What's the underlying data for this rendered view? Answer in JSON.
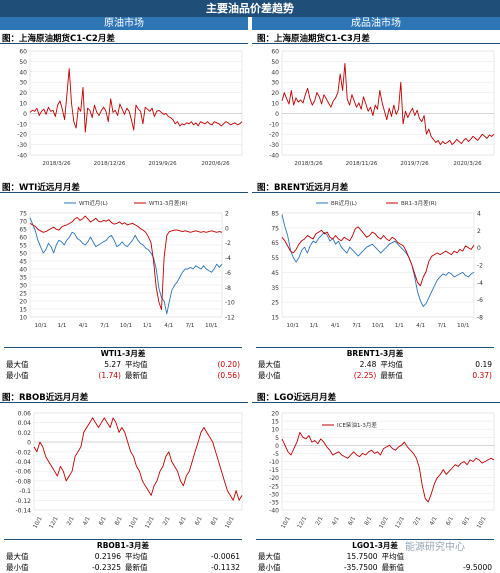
{
  "header": {
    "title": "主要油品价差趋势",
    "left": "原油市场",
    "right": "成品油市场"
  },
  "panels": {
    "p1": {
      "title": "图：上海原油期货C1-C2月差"
    },
    "p2": {
      "title": "图：上海原油期货C1-C3月差"
    },
    "p3": {
      "title": "图：WTI近远月月差"
    },
    "p4": {
      "title": "图：BRENT近远月月差"
    },
    "p5": {
      "title": "图：RBOB近远月月差"
    },
    "p6": {
      "title": "图：LGO近远月月差"
    }
  },
  "stats": {
    "wti": {
      "title": "WTI1-3月差",
      "max_label": "最大值",
      "max": "5.27",
      "avg_label": "平均值",
      "avg": "(0.20)",
      "min_label": "最小值",
      "min": "(1.74)",
      "latest_label": "最新值",
      "latest": "(0.56)"
    },
    "brent": {
      "title": "BRENT1-3月差",
      "max_label": "最大值",
      "max": "2.48",
      "avg_label": "平均值",
      "avg": "0.19",
      "min_label": "最小值",
      "min": "(2.25)",
      "latest_label": "最新值",
      "latest": "0.37)"
    },
    "rbob": {
      "title": "RBOB1-3月差",
      "max_label": "最大值",
      "max": "0.2196",
      "avg_label": "平均值",
      "avg": "-0.0061",
      "min_label": "最小值",
      "min": "-0.2325",
      "latest_label": "最新值",
      "latest": "-0.1132"
    },
    "lgo": {
      "title": "LGO1-3月差",
      "max_label": "最大值",
      "max": "15.7500",
      "avg_label": "平均值",
      "avg": "",
      "min_label": "最小值",
      "min": "-35.7500",
      "latest_label": "最新值",
      "latest": "-9.5000"
    }
  },
  "watermark": "能源研究中心",
  "colors": {
    "blue": "#2e75b6",
    "red": "#c00000",
    "navy": "#1f4e79"
  },
  "chart_data": [
    {
      "id": "c1",
      "type": "line",
      "x_ticks": [
        "2018/3/26",
        "2018/12/26",
        "2019/9/26",
        "2020/6/26"
      ],
      "ylim": [
        -40,
        60
      ],
      "y_ticks": [
        -40,
        -30,
        -20,
        -10,
        0,
        10,
        20,
        30,
        40,
        50,
        60
      ],
      "series": [
        {
          "color": "#c00000",
          "values": [
            1,
            3,
            2,
            5,
            -2,
            2,
            4,
            -1,
            6,
            2,
            3,
            -3,
            8,
            12,
            4,
            -6,
            18,
            43,
            10,
            -8,
            -14,
            6,
            2,
            25,
            -18,
            5,
            3,
            -4,
            8,
            1,
            -2,
            3,
            6,
            2,
            -8,
            14,
            1,
            3,
            -2,
            9,
            4,
            -1,
            5,
            2,
            -6,
            -16,
            8,
            4,
            2,
            -10,
            6,
            4,
            2,
            5,
            -3,
            2,
            3,
            1,
            -1,
            0,
            -3,
            -4,
            -6,
            -10,
            -8,
            -12,
            -10,
            -11,
            -9,
            -10,
            -8,
            -11,
            -9,
            -12,
            -8,
            -9,
            -10,
            -8,
            -10,
            -11,
            -8,
            -9,
            -10,
            -12,
            -10,
            -8,
            -9,
            -11,
            -10,
            -9,
            -11,
            -10,
            -8
          ]
        }
      ]
    },
    {
      "id": "c2",
      "type": "line",
      "x_ticks": [
        "2018/3/26",
        "2018/11/26",
        "2019/7/26",
        "2020/3/26"
      ],
      "ylim": [
        -40,
        60
      ],
      "y_ticks": [
        -40,
        -30,
        -20,
        -10,
        0,
        10,
        20,
        30,
        40,
        50,
        60
      ],
      "series": [
        {
          "color": "#c00000",
          "values": [
            12,
            20,
            14,
            9,
            22,
            8,
            15,
            11,
            13,
            10,
            18,
            24,
            14,
            8,
            12,
            20,
            16,
            9,
            18,
            14,
            10,
            6,
            12,
            15,
            20,
            38,
            22,
            48,
            14,
            8,
            18,
            12,
            6,
            10,
            4,
            16,
            9,
            2,
            6,
            -2,
            8,
            4,
            22,
            10,
            2,
            -6,
            5,
            -3,
            8,
            -1,
            4,
            30,
            -10,
            2,
            -4,
            1,
            5,
            -2,
            3,
            -5,
            -8,
            -2,
            -20,
            -15,
            -22,
            -25,
            -28,
            -26,
            -30,
            -27,
            -29,
            -28,
            -26,
            -30,
            -28,
            -25,
            -27,
            -29,
            -26,
            -24,
            -27,
            -25,
            -22,
            -24,
            -26,
            -23,
            -20,
            -22,
            -24,
            -21,
            -22,
            -20
          ]
        }
      ]
    },
    {
      "id": "c3",
      "type": "line",
      "x_ticks": [
        "10/1",
        "1/1",
        "4/1",
        "7/1",
        "10/1",
        "1/1",
        "4/1",
        "7/1",
        "10/1"
      ],
      "ylim": [
        10,
        75
      ],
      "y_ticks": [
        10,
        15,
        20,
        25,
        30,
        35,
        40,
        45,
        50,
        55,
        60,
        65,
        70,
        75
      ],
      "y2lim": [
        -12,
        2
      ],
      "y2_ticks": [
        -12,
        -10,
        -8,
        -6,
        -4,
        -2,
        0,
        2
      ],
      "series": [
        {
          "name": "WTI近月(L)",
          "axis": "left",
          "color": "#2e75b6",
          "values": [
            72,
            68,
            64,
            58,
            54,
            50,
            52,
            56,
            54,
            50,
            55,
            58,
            57,
            55,
            58,
            60,
            63,
            62,
            59,
            58,
            56,
            55,
            57,
            60,
            57,
            54,
            55,
            56,
            57,
            58,
            60,
            61,
            58,
            54,
            55,
            57,
            55,
            54,
            56,
            58,
            61,
            58,
            56,
            55,
            53,
            52,
            50,
            47,
            40,
            28,
            22,
            20,
            12,
            20,
            27,
            30,
            32,
            35,
            38,
            40,
            40,
            41,
            40,
            42,
            41,
            40,
            42,
            40,
            39,
            38,
            40,
            43,
            41,
            43
          ]
        },
        {
          "name": "WTI1-3月差(R)",
          "axis": "right",
          "color": "#c00000",
          "values": [
            0.6,
            0.4,
            0.2,
            -0.2,
            -0.4,
            -0.6,
            -0.5,
            -0.3,
            -0.1,
            0.1,
            -0.2,
            -0.3,
            0.1,
            0.3,
            0.4,
            0.6,
            0.8,
            1.2,
            1.4,
            1.0,
            1.2,
            1.6,
            1.2,
            0.8,
            1.0,
            1.3,
            0.9,
            0.8,
            1.0,
            0.9,
            1.1,
            0.7,
            0.5,
            0.6,
            0.8,
            0.5,
            0.7,
            0.4,
            0.5,
            0.6,
            0.4,
            0.2,
            -0.1,
            -0.3,
            -0.6,
            -1.2,
            -2.0,
            -4.5,
            -8.0,
            -10.0,
            -11.0,
            -4.0,
            -1.0,
            -0.5,
            -0.4,
            -0.3,
            -0.3,
            -0.4,
            -0.5,
            -0.4,
            -0.5,
            -0.6,
            -0.5,
            -0.4,
            -0.5,
            -0.6,
            -0.5,
            -0.6,
            -0.5,
            -0.4,
            -0.5,
            -0.6,
            -0.5,
            -0.6
          ]
        }
      ]
    },
    {
      "id": "c4",
      "type": "line",
      "x_ticks": [
        "10/1",
        "1/1",
        "4/1",
        "7/1",
        "10/1",
        "1/1",
        "4/1",
        "7/1",
        "10/1"
      ],
      "ylim": [
        15,
        85
      ],
      "y_ticks": [
        15,
        25,
        35,
        45,
        55,
        65,
        75,
        85
      ],
      "y2lim": [
        -8,
        4
      ],
      "y2_ticks": [
        -8,
        -6,
        -4,
        -2,
        0,
        2,
        4
      ],
      "series": [
        {
          "name": "BR近月(L)",
          "axis": "left",
          "color": "#2e75b6",
          "values": [
            84,
            76,
            70,
            60,
            55,
            52,
            55,
            60,
            62,
            58,
            63,
            66,
            65,
            68,
            70,
            72,
            70,
            66,
            68,
            64,
            66,
            62,
            60,
            58,
            62,
            60,
            58,
            56,
            58,
            60,
            62,
            63,
            64,
            62,
            60,
            58,
            60,
            62,
            64,
            65,
            66,
            64,
            62,
            60,
            58,
            55,
            50,
            42,
            32,
            26,
            22,
            24,
            28,
            32,
            36,
            40,
            42,
            44,
            43,
            45,
            44,
            42,
            43,
            44,
            45,
            43,
            42,
            44,
            45
          ]
        },
        {
          "name": "BR1-3月差(R)",
          "axis": "right",
          "color": "#c00000",
          "values": [
            1.2,
            0.8,
            0.2,
            -0.4,
            -0.6,
            -0.2,
            0.4,
            0.8,
            1.0,
            1.4,
            1.2,
            1.0,
            1.6,
            1.8,
            2.0,
            1.6,
            1.8,
            1.2,
            1.0,
            1.4,
            1.0,
            0.8,
            1.2,
            1.0,
            0.8,
            1.4,
            2.2,
            2.4,
            2.0,
            1.6,
            1.2,
            1.4,
            1.8,
            1.6,
            1.2,
            1.0,
            1.4,
            1.0,
            0.8,
            1.2,
            1.0,
            0.6,
            0.4,
            0.2,
            -0.4,
            -1.2,
            -2.0,
            -3.0,
            -4.0,
            -4.4,
            -3.4,
            -2.8,
            -1.6,
            -1.0,
            -0.8,
            -0.6,
            -0.8,
            -0.6,
            -0.4,
            -0.6,
            -0.8,
            -0.4,
            -0.6,
            -0.2,
            -0.4,
            0.2,
            0.0,
            -0.2,
            0.3
          ]
        }
      ]
    },
    {
      "id": "c5",
      "type": "line",
      "x_ticks": [
        "10/1",
        "12/1",
        "2/1",
        "4/1",
        "6/1",
        "8/1",
        "10/1",
        "12/1",
        "2/1",
        "4/1",
        "6/1",
        "8/1",
        "10/1"
      ],
      "ylim": [
        -0.14,
        0.06
      ],
      "y_ticks": [
        -0.14,
        -0.12,
        -0.1,
        -0.08,
        -0.06,
        -0.04,
        -0.02,
        0,
        0.02,
        0.04,
        0.06
      ],
      "series": [
        {
          "color": "#c00000",
          "values": [
            -0.01,
            -0.02,
            0.0,
            -0.01,
            -0.03,
            -0.04,
            -0.05,
            -0.06,
            -0.07,
            -0.05,
            -0.06,
            -0.08,
            -0.07,
            -0.06,
            -0.03,
            -0.02,
            -0.01,
            0.02,
            0.03,
            0.04,
            0.05,
            0.04,
            0.03,
            0.04,
            0.05,
            0.04,
            0.03,
            0.05,
            0.04,
            0.02,
            0.03,
            0.02,
            0.0,
            -0.02,
            -0.03,
            -0.05,
            -0.06,
            -0.08,
            -0.09,
            -0.1,
            -0.11,
            -0.09,
            -0.08,
            -0.06,
            -0.05,
            -0.03,
            -0.02,
            -0.04,
            -0.05,
            -0.06,
            -0.08,
            -0.09,
            -0.07,
            -0.06,
            -0.04,
            -0.02,
            0.0,
            0.02,
            0.03,
            0.02,
            0.01,
            0.0,
            -0.02,
            -0.04,
            -0.06,
            -0.08,
            -0.1,
            -0.11,
            -0.12,
            -0.1,
            -0.12,
            -0.11
          ]
        }
      ]
    },
    {
      "id": "c6",
      "type": "line",
      "x_ticks": [
        "10/1",
        "12/1",
        "2/1",
        "4/1",
        "6/1",
        "8/1",
        "10/1",
        "12/1",
        "2/1",
        "4/1",
        "6/1",
        "8/1",
        "10/1"
      ],
      "ylim": [
        -40,
        20
      ],
      "y_ticks": [
        -40,
        -35,
        -30,
        -25,
        -20,
        -15,
        -10,
        -5,
        0,
        5,
        10,
        15,
        20
      ],
      "series": [
        {
          "name": "ICE柴油1-3月差",
          "color": "#c00000",
          "values": [
            4,
            0,
            -4,
            -6,
            -2,
            2,
            8,
            5,
            4,
            6,
            2,
            3,
            1,
            4,
            2,
            -1,
            -3,
            -6,
            -5,
            -4,
            -6,
            -7,
            -8,
            -6,
            -4,
            -6,
            -7,
            -5,
            -6,
            -4,
            -3,
            -5,
            -4,
            -6,
            -2,
            -1,
            0,
            -2,
            -3,
            -1,
            0,
            2,
            -1,
            -3,
            -5,
            -8,
            -14,
            -25,
            -33,
            -35,
            -30,
            -24,
            -20,
            -18,
            -15,
            -18,
            -16,
            -14,
            -12,
            -13,
            -11,
            -10,
            -12,
            -9,
            -10,
            -8,
            -9,
            -11,
            -10,
            -9,
            -8,
            -9
          ]
        }
      ]
    }
  ]
}
